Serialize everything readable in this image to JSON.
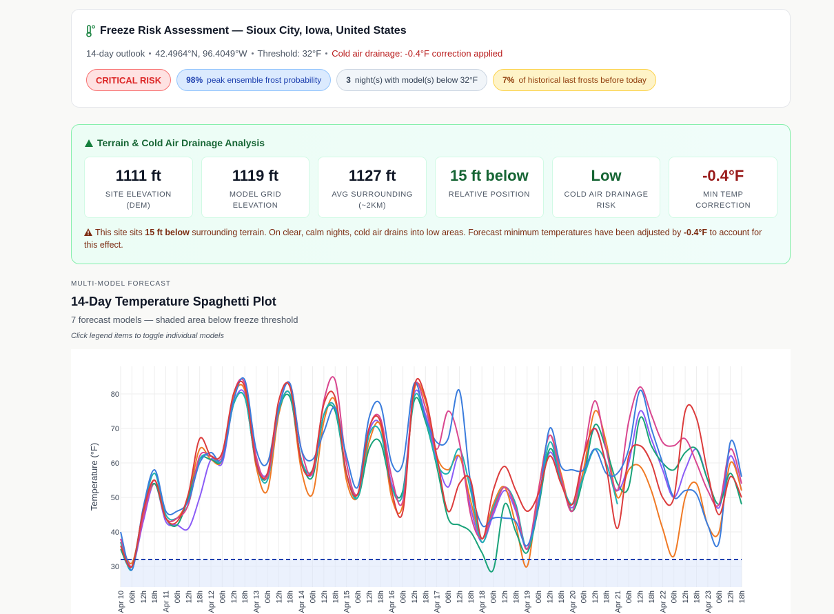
{
  "header": {
    "title": "Freeze Risk Assessment — Sioux City, Iowa, United States",
    "meta": [
      "14-day outlook",
      "42.4964°N, 96.4049°W",
      "Threshold: 32°F",
      "Cold air drainage: -0.4°F correction applied"
    ],
    "badges": [
      {
        "strong": "CRITICAL RISK"
      },
      {
        "strong": "98%",
        "text": "peak ensemble frost probability"
      },
      {
        "strong": "3",
        "text": "night(s) with model(s) below 32°F"
      },
      {
        "strong": "7%",
        "text": "of historical last frosts before today"
      }
    ]
  },
  "terrain": {
    "title": "Terrain & Cold Air Drainage Analysis",
    "stats": [
      {
        "value": "1111 ft",
        "label": "SITE ELEVATION (DEM)",
        "color": "#111827"
      },
      {
        "value": "1119 ft",
        "label": "MODEL GRID ELEVATION",
        "color": "#111827"
      },
      {
        "value": "1127 ft",
        "label": "AVG SURROUNDING (~2KM)",
        "color": "#111827"
      },
      {
        "value": "15 ft below",
        "label": "RELATIVE POSITION",
        "color": "#166534"
      },
      {
        "value": "Low",
        "label": "COLD AIR DRAINAGE RISK",
        "color": "#166534"
      },
      {
        "value": "-0.4°F",
        "label": "MIN TEMP CORRECTION",
        "color": "#991b1b"
      }
    ],
    "note": [
      "This site sits ",
      "15 ft below",
      " surrounding terrain. On clear, calm nights, cold air drains into low areas. Forecast minimum temperatures have been adjusted by ",
      "-0.4°F",
      " to account for this effect."
    ]
  },
  "section": {
    "kicker": "MULTI-MODEL FORECAST",
    "title": "14-Day Temperature Spaghetti Plot",
    "subtitle": "7 forecast models — shaded area below freeze threshold",
    "hint": "Click legend items to toggle individual models"
  },
  "chart_data": {
    "type": "line",
    "y_label": "Temperature (°F)",
    "grid": true,
    "threshold": 32,
    "threshold_color": "#1e40af",
    "categories": [
      "Apr 10",
      "06h",
      "12h",
      "18h",
      "Apr 11",
      "06h",
      "12h",
      "18h",
      "Apr 12",
      "06h",
      "12h",
      "18h",
      "Apr 13",
      "06h",
      "12h",
      "18h",
      "Apr 14",
      "06h",
      "12h",
      "18h",
      "Apr 15",
      "06h",
      "12h",
      "18h",
      "Apr 16",
      "06h",
      "12h",
      "18h",
      "Apr 17",
      "06h",
      "12h",
      "18h",
      "Apr 18",
      "06h",
      "12h",
      "18h",
      "Apr 19",
      "06h",
      "12h",
      "18h",
      "Apr 20",
      "06h",
      "12h",
      "18h",
      "Apr 21",
      "06h",
      "12h",
      "18h",
      "Apr 22",
      "06h",
      "12h",
      "18h",
      "Apr 23",
      "06h",
      "12h",
      "18h"
    ],
    "ylim": [
      24,
      88
    ],
    "yticks": [
      30,
      40,
      50,
      60,
      70,
      80
    ],
    "series": [
      {
        "color": "#8b5cf6",
        "values": [
          38,
          30,
          43,
          54,
          43,
          42,
          41,
          50,
          61,
          60,
          77,
          80,
          61,
          57,
          75,
          80,
          61,
          57,
          74,
          76,
          57,
          51,
          69,
          71,
          54,
          52,
          80,
          74,
          61,
          53,
          62,
          47,
          37,
          45,
          52,
          46,
          35,
          49,
          63,
          55,
          47,
          58,
          70,
          60,
          52,
          60,
          75,
          67,
          58,
          50,
          58,
          64,
          55,
          47,
          62,
          52
        ]
      },
      {
        "color": "#f07a25",
        "values": [
          37,
          31,
          45,
          54,
          44,
          44,
          50,
          64,
          61,
          61,
          79,
          81,
          59,
          52,
          74,
          80,
          58,
          51,
          72,
          78,
          55,
          50,
          66,
          71,
          50,
          48,
          81,
          78,
          62,
          58,
          62,
          49,
          38,
          48,
          53,
          42,
          30,
          52,
          68,
          57,
          46,
          58,
          75,
          66,
          50,
          58,
          59,
          52,
          41,
          33,
          50,
          54,
          42,
          40,
          60,
          52
        ]
      },
      {
        "color": "#1aa37a",
        "values": [
          35,
          30,
          46,
          54,
          44,
          42,
          50,
          61,
          61,
          61,
          77,
          79,
          60,
          56,
          75,
          79,
          61,
          56,
          74,
          75,
          57,
          50,
          64,
          66,
          53,
          52,
          78,
          72,
          59,
          44,
          42,
          40,
          34,
          29,
          48,
          40,
          34,
          47,
          64,
          55,
          46,
          56,
          71,
          64,
          54,
          53,
          73,
          65,
          60,
          58,
          63,
          64,
          55,
          48,
          57,
          48
        ]
      },
      {
        "color": "#20b2b2",
        "values": [
          37,
          29,
          46,
          57,
          45,
          44,
          48,
          61,
          62,
          61,
          77,
          79,
          60,
          55,
          75,
          80,
          61,
          58,
          74,
          76,
          57,
          50,
          68,
          69,
          53,
          51,
          79,
          73,
          60,
          57,
          64,
          52,
          37,
          47,
          53,
          48,
          35,
          48,
          66,
          55,
          48,
          56,
          64,
          60,
          48,
          null,
          null,
          null,
          null,
          null,
          null,
          null,
          null,
          null,
          null,
          null
        ]
      },
      {
        "color": "#d9468f",
        "values": [
          38,
          30,
          44,
          55,
          44,
          44,
          48,
          62,
          62,
          62,
          80,
          83,
          62,
          56,
          76,
          83,
          64,
          57,
          78,
          84,
          60,
          51,
          70,
          73,
          56,
          49,
          82,
          76,
          64,
          75,
          66,
          45,
          38,
          46,
          53,
          47,
          35,
          52,
          68,
          56,
          46,
          62,
          78,
          64,
          52,
          72,
          82,
          74,
          66,
          65,
          67,
          60,
          52,
          48,
          64,
          54
        ]
      },
      {
        "color": "#3b7ddd",
        "values": [
          40,
          29,
          47,
          58,
          46,
          46,
          49,
          60,
          63,
          61,
          78,
          84,
          64,
          60,
          76,
          83,
          64,
          61,
          69,
          76,
          62,
          53,
          73,
          77,
          60,
          60,
          83,
          73,
          66,
          67,
          81,
          54,
          42,
          44,
          44,
          43,
          36,
          48,
          70,
          59,
          58,
          58,
          64,
          57,
          57,
          64,
          81,
          70,
          60,
          50,
          52,
          51,
          42,
          37,
          66,
          56
        ]
      },
      {
        "color": "#dc3c3c",
        "values": [
          36,
          30,
          46,
          55,
          44,
          43,
          51,
          67,
          62,
          63,
          80,
          82,
          60,
          57,
          78,
          82,
          60,
          58,
          77,
          79,
          57,
          51,
          70,
          72,
          52,
          46,
          82,
          79,
          62,
          46,
          54,
          55,
          38,
          52,
          59,
          52,
          46,
          51,
          62,
          54,
          48,
          62,
          70,
          59,
          41,
          62,
          65,
          60,
          50,
          50,
          75,
          73,
          57,
          45,
          56,
          50
        ]
      }
    ]
  }
}
